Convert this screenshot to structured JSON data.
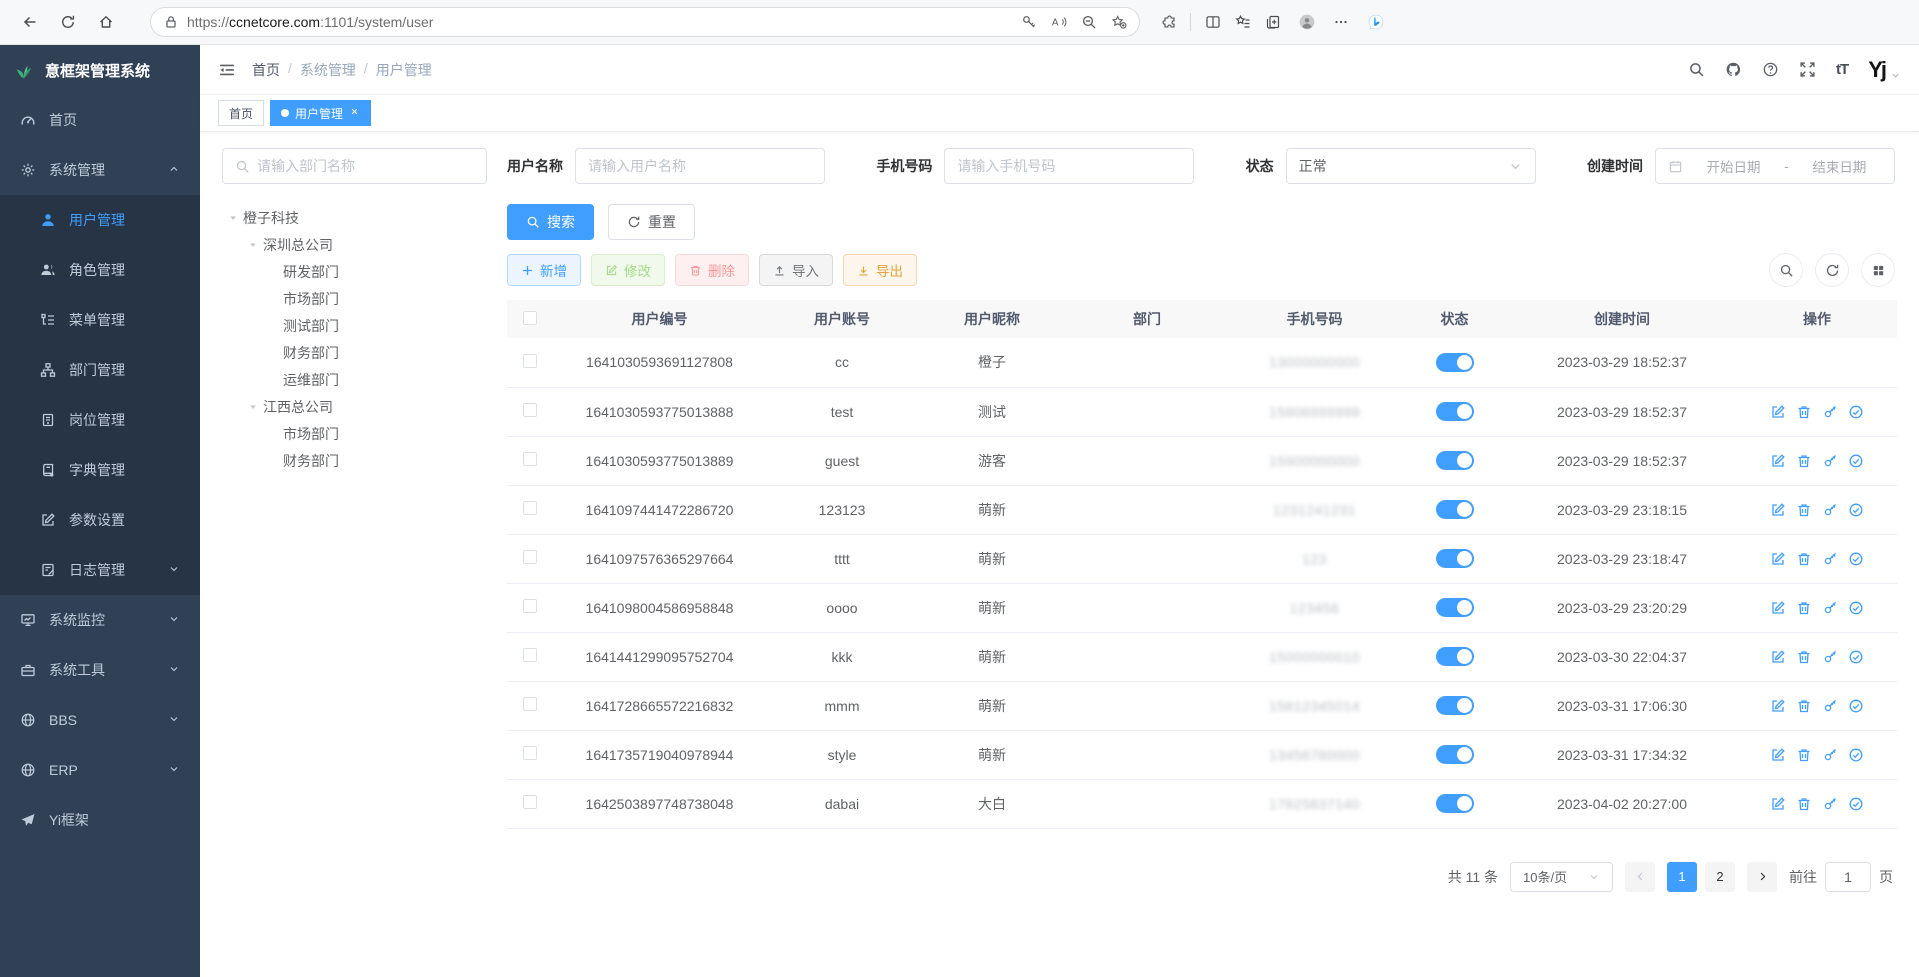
{
  "colors": {
    "accent": "#409eff",
    "sidebar_bg": "#304156",
    "submenu_bg": "#263445",
    "success_light": "#a4da88",
    "danger_light": "#f49898",
    "warning": "#e6a23c",
    "toggle_on": "#409eff"
  },
  "browser": {
    "url_scheme": "https://",
    "url_host": "ccnetcore.com",
    "url_rest": ":1101/system/user"
  },
  "sidebar": {
    "logo_title": "意框架管理系统",
    "items": [
      {
        "key": "home",
        "label": "首页",
        "icon": "dashboard-icon"
      },
      {
        "key": "system",
        "label": "系统管理",
        "icon": "gear-icon",
        "open": true,
        "children": [
          {
            "key": "user",
            "label": "用户管理",
            "icon": "user-icon",
            "active": true
          },
          {
            "key": "role",
            "label": "角色管理",
            "icon": "roles-icon"
          },
          {
            "key": "menu",
            "label": "菜单管理",
            "icon": "menu-tree-icon"
          },
          {
            "key": "dept",
            "label": "部门管理",
            "icon": "org-icon"
          },
          {
            "key": "post",
            "label": "岗位管理",
            "icon": "badge-icon"
          },
          {
            "key": "dict",
            "label": "字典管理",
            "icon": "dict-icon"
          },
          {
            "key": "config",
            "label": "参数设置",
            "icon": "edit-square-icon"
          },
          {
            "key": "log",
            "label": "日志管理",
            "icon": "log-icon",
            "chevron": "down"
          }
        ]
      },
      {
        "key": "monitor",
        "label": "系统监控",
        "icon": "monitor-icon",
        "chevron": "down"
      },
      {
        "key": "tools",
        "label": "系统工具",
        "icon": "toolbox-icon",
        "chevron": "down"
      },
      {
        "key": "bbs",
        "label": "BBS",
        "icon": "globe-icon",
        "chevron": "down"
      },
      {
        "key": "erp",
        "label": "ERP",
        "icon": "globe-icon",
        "chevron": "down"
      },
      {
        "key": "yi",
        "label": "Yi框架",
        "icon": "plane-icon"
      }
    ]
  },
  "breadcrumb": {
    "items": [
      "首页",
      "系统管理",
      "用户管理"
    ],
    "separator": "/"
  },
  "tabs": {
    "items": [
      {
        "label": "首页",
        "active": false,
        "closable": false
      },
      {
        "label": "用户管理",
        "active": true,
        "closable": true
      }
    ]
  },
  "filters": {
    "dept_search_placeholder": "请输入部门名称",
    "username_label": "用户名称",
    "username_placeholder": "请输入用户名称",
    "phone_label": "手机号码",
    "phone_placeholder": "请输入手机号码",
    "status_label": "状态",
    "status_value": "正常",
    "created_label": "创建时间",
    "date_start_placeholder": "开始日期",
    "date_separator": "-",
    "date_end_placeholder": "结束日期",
    "search_button": "搜索",
    "reset_button": "重置"
  },
  "tree": {
    "nodes": [
      {
        "label": "橙子科技",
        "children": [
          {
            "label": "深圳总公司",
            "children": [
              {
                "label": "研发部门"
              },
              {
                "label": "市场部门"
              },
              {
                "label": "测试部门"
              },
              {
                "label": "财务部门"
              },
              {
                "label": "运维部门"
              }
            ]
          },
          {
            "label": "江西总公司",
            "children": [
              {
                "label": "市场部门"
              },
              {
                "label": "财务部门"
              }
            ]
          }
        ]
      }
    ]
  },
  "toolbar": {
    "add_label": "新增",
    "edit_label": "修改",
    "delete_label": "删除",
    "import_label": "导入",
    "export_label": "导出"
  },
  "table": {
    "headers": [
      "用户编号",
      "用户账号",
      "用户昵称",
      "部门",
      "手机号码",
      "状态",
      "创建时间",
      "操作"
    ],
    "rows": [
      {
        "id": "1641030593691127808",
        "account": "cc",
        "nickname": "橙子",
        "dept": "",
        "phone": "13000000000",
        "phone_masked": true,
        "status_on": true,
        "created": "2023-03-29 18:52:37",
        "ops": false
      },
      {
        "id": "1641030593775013888",
        "account": "test",
        "nickname": "测试",
        "dept": "",
        "phone": "15906999999",
        "phone_masked": true,
        "status_on": true,
        "created": "2023-03-29 18:52:37",
        "ops": true
      },
      {
        "id": "1641030593775013889",
        "account": "guest",
        "nickname": "游客",
        "dept": "",
        "phone": "15900000000",
        "phone_masked": true,
        "status_on": true,
        "created": "2023-03-29 18:52:37",
        "ops": true
      },
      {
        "id": "1641097441472286720",
        "account": "123123",
        "nickname": "萌新",
        "dept": "",
        "phone": "1231241231",
        "phone_masked": true,
        "status_on": true,
        "created": "2023-03-29 23:18:15",
        "ops": true
      },
      {
        "id": "1641097576365297664",
        "account": "tttt",
        "nickname": "萌新",
        "dept": "",
        "phone": "123",
        "phone_masked": true,
        "status_on": true,
        "created": "2023-03-29 23:18:47",
        "ops": true
      },
      {
        "id": "1641098004586958848",
        "account": "oooo",
        "nickname": "萌新",
        "dept": "",
        "phone": "123456",
        "phone_masked": true,
        "status_on": true,
        "created": "2023-03-29 23:20:29",
        "ops": true
      },
      {
        "id": "1641441299095752704",
        "account": "kkk",
        "nickname": "萌新",
        "dept": "",
        "phone": "15000000010",
        "phone_masked": true,
        "status_on": true,
        "created": "2023-03-30 22:04:37",
        "ops": true
      },
      {
        "id": "1641728665572216832",
        "account": "mmm",
        "nickname": "萌新",
        "dept": "",
        "phone": "15812345014",
        "phone_masked": true,
        "status_on": true,
        "created": "2023-03-31 17:06:30",
        "ops": true
      },
      {
        "id": "1641735719040978944",
        "account": "style",
        "nickname": "萌新",
        "dept": "",
        "phone": "13456780000",
        "phone_masked": true,
        "status_on": true,
        "created": "2023-03-31 17:34:32",
        "ops": true
      },
      {
        "id": "1642503897748738048",
        "account": "dabai",
        "nickname": "大白",
        "dept": "",
        "phone": "17625637140",
        "phone_masked": true,
        "status_on": true,
        "created": "2023-04-02 20:27:00",
        "ops": true
      }
    ],
    "op_icons": [
      "edit-icon",
      "delete-icon",
      "key-icon",
      "check-circle-icon"
    ]
  },
  "pagination": {
    "total_text": "共 11 条",
    "page_size_value": "10条/页",
    "pages": [
      "1",
      "2"
    ],
    "current_page": "1",
    "goto_label": "前往",
    "goto_value": "1",
    "goto_suffix": "页"
  },
  "navbar": {
    "font_size_label": "tT",
    "avatar_text": "Yj"
  }
}
